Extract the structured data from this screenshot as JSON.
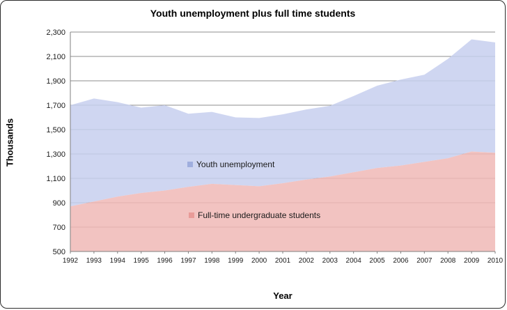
{
  "chart_data": {
    "type": "area",
    "title": "Youth unemployment plus full time students",
    "xlabel": "Year",
    "ylabel": "Thousands",
    "x": [
      1992,
      1993,
      1994,
      1995,
      1996,
      1997,
      1998,
      1999,
      2000,
      2001,
      2002,
      2003,
      2004,
      2005,
      2006,
      2007,
      2008,
      2009,
      2010
    ],
    "series": [
      {
        "name": "Youth unemployment",
        "values": [
          1700,
          1755,
          1725,
          1680,
          1700,
          1630,
          1645,
          1600,
          1595,
          1625,
          1665,
          1695,
          1775,
          1860,
          1910,
          1950,
          2080,
          2240,
          2215
        ],
        "fill": "#c7cfee",
        "marker": "#9faede"
      },
      {
        "name": "Full-time undergraduate students",
        "values": [
          870,
          910,
          950,
          980,
          1000,
          1030,
          1055,
          1045,
          1035,
          1060,
          1090,
          1115,
          1150,
          1185,
          1205,
          1235,
          1265,
          1320,
          1310
        ],
        "fill": "#f0b8b6",
        "marker": "#e89b98"
      }
    ],
    "ylim": [
      500,
      2300
    ],
    "ytick_step": 200,
    "grid": true,
    "legend_position": "inside",
    "axis_color": "#7f7f7f",
    "grid_color": "#8c8c8c"
  }
}
